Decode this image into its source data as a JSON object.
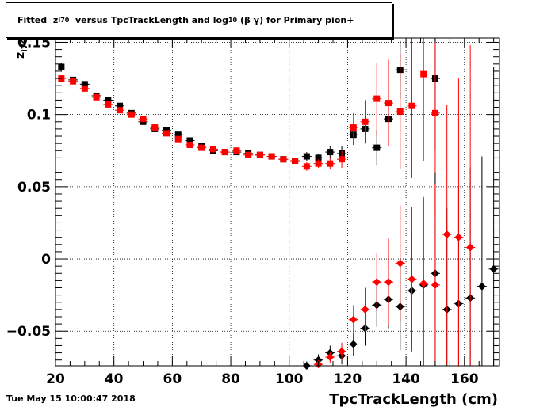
{
  "page": {
    "title_parts": {
      "prefix": "Fitted",
      "z": "z",
      "z_sub": "I70",
      "mid": "versus TpcTrackLength and log",
      "log_sub": "10",
      "suffix": "(β γ) for Primary pion+"
    },
    "timestamp": "Tue May 15 10:00:47 2018"
  },
  "chart_data": {
    "type": "scatter",
    "xlabel": "TpcTrackLength (cm)",
    "ylabel": "z",
    "ylabel_sub": "I70",
    "xlim": [
      20,
      172
    ],
    "ylim": [
      -0.074,
      0.153
    ],
    "x_ticks": [
      20,
      40,
      60,
      80,
      100,
      120,
      140,
      160
    ],
    "x_tick_labels": [
      "20",
      "40",
      "60",
      "80",
      "100",
      "120",
      "140",
      "160"
    ],
    "y_ticks": [
      -0.05,
      0,
      0.05,
      0.1,
      0.15
    ],
    "y_tick_labels": [
      "−0.05",
      "0",
      "0.05",
      "0.1",
      "0.15"
    ],
    "grid": true,
    "series": [
      {
        "marker": "square",
        "color": "#000000",
        "points": [
          [
            22,
            0.133,
            0.003
          ],
          [
            26,
            0.124,
            0.002
          ],
          [
            30,
            0.121,
            0.002
          ],
          [
            34,
            0.113,
            0.002
          ],
          [
            38,
            0.11,
            0.002
          ],
          [
            42,
            0.106,
            0.002
          ],
          [
            46,
            0.101,
            0.002
          ],
          [
            50,
            0.095,
            0.002
          ],
          [
            54,
            0.09,
            0.002
          ],
          [
            58,
            0.089,
            0.002
          ],
          [
            62,
            0.086,
            0.002
          ],
          [
            66,
            0.082,
            0.002
          ],
          [
            70,
            0.078,
            0.002
          ],
          [
            74,
            0.075,
            0.002
          ],
          [
            78,
            0.074,
            0.002
          ],
          [
            82,
            0.074,
            0.002
          ],
          [
            86,
            0.073,
            0.002
          ],
          [
            90,
            0.072,
            0.002
          ],
          [
            94,
            0.071,
            0.002
          ],
          [
            98,
            0.069,
            0.002
          ],
          [
            102,
            0.068,
            0.002
          ],
          [
            106,
            0.071,
            0.003
          ],
          [
            110,
            0.07,
            0.003
          ],
          [
            114,
            0.074,
            0.004
          ],
          [
            118,
            0.073,
            0.005
          ],
          [
            122,
            0.086,
            0.007
          ],
          [
            126,
            0.09,
            0.01
          ],
          [
            130,
            0.077,
            0.012
          ],
          [
            134,
            0.097,
            0.015
          ],
          [
            138,
            0.131,
            0.02
          ],
          [
            150,
            0.125,
            0.05
          ]
        ]
      },
      {
        "marker": "square",
        "color": "#ff0000",
        "points": [
          [
            22,
            0.125,
            0.002
          ],
          [
            26,
            0.123,
            0.002
          ],
          [
            30,
            0.118,
            0.002
          ],
          [
            34,
            0.112,
            0.002
          ],
          [
            38,
            0.107,
            0.002
          ],
          [
            42,
            0.103,
            0.002
          ],
          [
            46,
            0.1,
            0.002
          ],
          [
            50,
            0.097,
            0.002
          ],
          [
            54,
            0.091,
            0.002
          ],
          [
            58,
            0.087,
            0.002
          ],
          [
            62,
            0.083,
            0.002
          ],
          [
            66,
            0.079,
            0.002
          ],
          [
            70,
            0.077,
            0.002
          ],
          [
            74,
            0.076,
            0.002
          ],
          [
            78,
            0.074,
            0.002
          ],
          [
            82,
            0.075,
            0.002
          ],
          [
            86,
            0.072,
            0.002
          ],
          [
            90,
            0.072,
            0.002
          ],
          [
            94,
            0.071,
            0.002
          ],
          [
            98,
            0.069,
            0.002
          ],
          [
            102,
            0.068,
            0.002
          ],
          [
            106,
            0.064,
            0.003
          ],
          [
            110,
            0.066,
            0.003
          ],
          [
            114,
            0.066,
            0.004
          ],
          [
            118,
            0.069,
            0.006
          ],
          [
            122,
            0.091,
            0.01
          ],
          [
            126,
            0.095,
            0.015
          ],
          [
            130,
            0.111,
            0.025
          ],
          [
            134,
            0.108,
            0.03
          ],
          [
            138,
            0.102,
            0.04
          ],
          [
            142,
            0.106,
            0.05
          ],
          [
            146,
            0.128,
            0.06
          ],
          [
            150,
            0.101,
            0.07
          ]
        ]
      },
      {
        "marker": "diamond",
        "color": "#000000",
        "points": [
          [
            106,
            -0.074,
            0.003
          ],
          [
            110,
            -0.07,
            0.004
          ],
          [
            114,
            -0.065,
            0.005
          ],
          [
            118,
            -0.067,
            0.006
          ],
          [
            122,
            -0.059,
            0.008
          ],
          [
            126,
            -0.048,
            0.012
          ],
          [
            130,
            -0.032,
            0.015
          ],
          [
            134,
            -0.028,
            0.02
          ],
          [
            138,
            -0.033,
            0.03
          ],
          [
            142,
            -0.022,
            0.04
          ],
          [
            146,
            -0.018,
            0.06
          ],
          [
            150,
            -0.01,
            0.07
          ],
          [
            154,
            -0.035,
            0.07
          ],
          [
            158,
            -0.031,
            0.08
          ],
          [
            162,
            -0.027,
            0.09
          ],
          [
            166,
            -0.019,
            0.09
          ],
          [
            170,
            -0.007,
            0.14
          ]
        ]
      },
      {
        "marker": "diamond",
        "color": "#ff0000",
        "points": [
          [
            110,
            -0.073,
            0.003
          ],
          [
            114,
            -0.068,
            0.004
          ],
          [
            118,
            -0.064,
            0.006
          ],
          [
            122,
            -0.042,
            0.01
          ],
          [
            126,
            -0.035,
            0.015
          ],
          [
            130,
            -0.016,
            0.02
          ],
          [
            134,
            -0.016,
            0.03
          ],
          [
            138,
            -0.003,
            0.04
          ],
          [
            142,
            -0.014,
            0.05
          ],
          [
            146,
            -0.017,
            0.06
          ],
          [
            150,
            -0.018,
            0.07
          ],
          [
            154,
            0.017,
            0.09
          ],
          [
            158,
            0.015,
            0.11
          ],
          [
            162,
            0.008,
            0.14
          ]
        ]
      }
    ]
  }
}
